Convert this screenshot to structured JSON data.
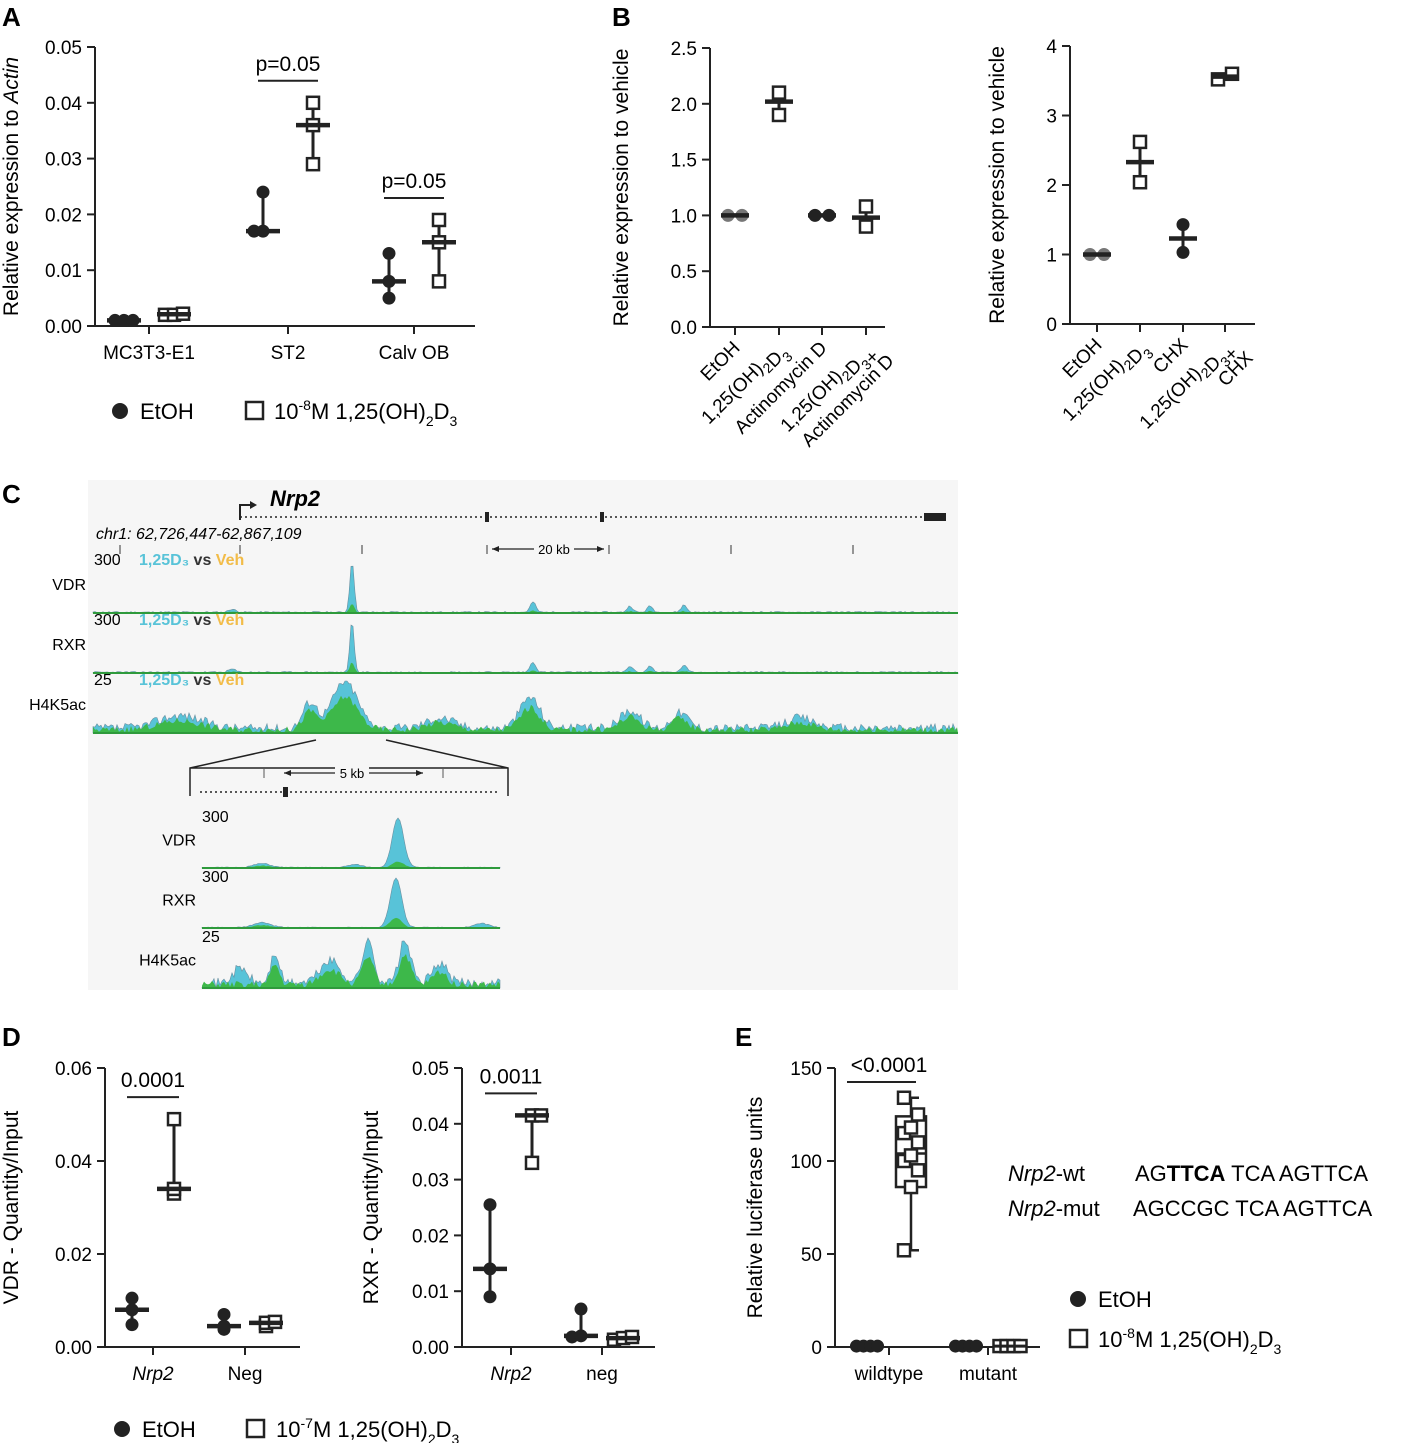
{
  "panel_labels": [
    "A",
    "B",
    "C",
    "D",
    "E"
  ],
  "chart_data": [
    {
      "id": "A",
      "type": "scatter",
      "ylabel": "Relative expression to Actin",
      "ylim": [
        0,
        0.05
      ],
      "yticks": [
        "0.00",
        "0.01",
        "0.02",
        "0.03",
        "0.04",
        "0.05"
      ],
      "categories": [
        "MC3T3-E1",
        "ST2",
        "Calv OB"
      ],
      "series": [
        {
          "name": "EtOH",
          "marker": "filled-circle",
          "values": [
            [
              0.001,
              0.001,
              0.001
            ],
            [
              0.017,
              0.017,
              0.024
            ],
            [
              0.005,
              0.008,
              0.013
            ]
          ],
          "center": [
            0.001,
            0.017,
            0.008
          ]
        },
        {
          "name": "10-8M 1,25(OH)2D3",
          "marker": "open-square",
          "values": [
            [
              0.002,
              0.002,
              0.0022
            ],
            [
              0.029,
              0.036,
              0.04
            ],
            [
              0.008,
              0.015,
              0.019
            ]
          ],
          "center": [
            0.0021,
            0.036,
            0.015
          ]
        }
      ],
      "annotations": [
        {
          "text": "p=0.05",
          "category": 1
        },
        {
          "text": "p=0.05",
          "category": 2
        }
      ],
      "legend": [
        "EtOH",
        "10-8M 1,25(OH)2D3"
      ]
    },
    {
      "id": "B-left",
      "type": "scatter",
      "ylabel": "Relative expression to vehicle",
      "ylim": [
        0,
        2.5
      ],
      "yticks": [
        "0.0",
        "0.5",
        "1.0",
        "1.5",
        "2.0",
        "2.5"
      ],
      "categories": [
        "EtOH",
        "1,25(OH)2D3",
        "Actinomycin D",
        "1,25(OH)2D3+ Actinomycin D"
      ],
      "markers": [
        "grey-circle",
        "open-square",
        "filled-circle",
        "open-square"
      ],
      "values": [
        [
          1.0,
          1.0
        ],
        [
          1.9,
          2.1
        ],
        [
          1.0,
          1.0
        ],
        [
          0.9,
          1.08
        ]
      ],
      "center": [
        1.0,
        2.02,
        1.0,
        0.98
      ]
    },
    {
      "id": "B-right",
      "type": "scatter",
      "ylabel": "Relative expression to vehicle",
      "ylim": [
        0,
        4
      ],
      "yticks": [
        "0",
        "1",
        "2",
        "3",
        "4"
      ],
      "categories": [
        "EtOH",
        "1,25(OH)2D3",
        "CHX",
        "1,25(OH)2D3+ CHX"
      ],
      "markers": [
        "grey-circle",
        "open-square",
        "filled-circle",
        "open-square"
      ],
      "values": [
        [
          1.0,
          1.0
        ],
        [
          2.04,
          2.62
        ],
        [
          1.03,
          1.43
        ],
        [
          3.52,
          3.6
        ]
      ],
      "center": [
        1.0,
        2.33,
        1.23,
        3.56
      ]
    },
    {
      "id": "D-VDR",
      "type": "scatter",
      "ylabel": "VDR - Quantity/Input",
      "ylim": [
        0,
        0.06
      ],
      "yticks": [
        "0.00",
        "0.02",
        "0.04",
        "0.06"
      ],
      "categories": [
        "Nrp2",
        "Neg"
      ],
      "series": [
        {
          "name": "EtOH",
          "values": [
            [
              0.0048,
              0.008,
              0.0105
            ],
            [
              0.0038,
              0.0045,
              0.007
            ]
          ],
          "center": [
            0.008,
            0.0045
          ]
        },
        {
          "name": "10-7M 1,25(OH)2D3",
          "values": [
            [
              0.033,
              0.034,
              0.049
            ],
            [
              0.0045,
              0.0052,
              0.0054
            ]
          ],
          "center": [
            0.034,
            0.0052
          ]
        }
      ],
      "annotations": [
        {
          "text": "0.0001",
          "category": 0
        }
      ]
    },
    {
      "id": "D-RXR",
      "type": "scatter",
      "ylabel": "RXR - Quantity/Input",
      "ylim": [
        0,
        0.05
      ],
      "yticks": [
        "0.00",
        "0.01",
        "0.02",
        "0.03",
        "0.04",
        "0.05"
      ],
      "categories": [
        "Nrp2",
        "neg"
      ],
      "series": [
        {
          "name": "EtOH",
          "values": [
            [
              0.009,
              0.014,
              0.0255
            ],
            [
              0.0018,
              0.002,
              0.0068
            ]
          ],
          "center": [
            0.014,
            0.002
          ]
        },
        {
          "name": "10-7M 1,25(OH)2D3",
          "values": [
            [
              0.033,
              0.0415,
              0.0415
            ],
            [
              0.0013,
              0.0016,
              0.0018
            ]
          ],
          "center": [
            0.0415,
            0.0016
          ]
        }
      ],
      "annotations": [
        {
          "text": "0.0011",
          "category": 0
        }
      ]
    },
    {
      "id": "E",
      "type": "box",
      "ylabel": "Relative luciferase units",
      "ylim": [
        0,
        150
      ],
      "yticks": [
        "0",
        "50",
        "100",
        "150"
      ],
      "categories": [
        "wildtype",
        "mutant"
      ],
      "series": [
        {
          "name": "EtOH",
          "values": [
            [
              0.5,
              0.5,
              0.5,
              0.5
            ],
            [
              0.5,
              0.5,
              0.5,
              0.5
            ]
          ]
        },
        {
          "name": "10-8M 1,25(OH)2D3",
          "values": [
            [
              52,
              86,
              95,
              100,
              103,
              110,
              115,
              118,
              125,
              134
            ],
            [
              0.5,
              0.5,
              0.5,
              0.5
            ]
          ],
          "box": {
            "q1": 86,
            "median": 104,
            "q3": 124,
            "min": 52,
            "max": 134
          }
        }
      ],
      "annotations": [
        {
          "text": "<0.0001",
          "category": 0
        }
      ]
    },
    {
      "id": "C",
      "type": "area",
      "gene": "Nrp2",
      "locus": "chr1: 62,726,447-62,867,109",
      "scale_main": "20 kb",
      "scale_zoom": "5 kb",
      "compare": {
        "treated": "1,25D₃",
        "vs": "vs",
        "control": "Veh"
      },
      "tracks": [
        {
          "name": "VDR",
          "scale": "300"
        },
        {
          "name": "RXR",
          "scale": "300"
        },
        {
          "name": "H4K5ac",
          "scale": "25"
        }
      ]
    }
  ],
  "legend_a": {
    "ctrl": "EtOH",
    "treat": "10-8M 1,25(OH)2D3"
  },
  "legend_d": {
    "ctrl": "EtOH",
    "treat": "10-7M 1,25(OH)2D3"
  },
  "legend_e": {
    "ctrl": "EtOH",
    "treat": "10-8M 1,25(OH)2D3"
  },
  "sequences": [
    {
      "gene": "Nrp2",
      "suffix": "-wt",
      "seq_pre": "AG",
      "seq_bold": "TTCA",
      "seq_post": " TCA AGTTCA"
    },
    {
      "gene": "Nrp2",
      "suffix": "-mut",
      "seq_pre": "AGCCGC",
      "seq_bold": "",
      "seq_post": " TCA AGTTCA"
    }
  ],
  "colors": {
    "treated": "#58c3d8",
    "control": "#f2bc48",
    "overlap": "#3db84a",
    "baseline": "#2e9a3c",
    "ink": "#222222",
    "grey_marker": "#777777"
  }
}
